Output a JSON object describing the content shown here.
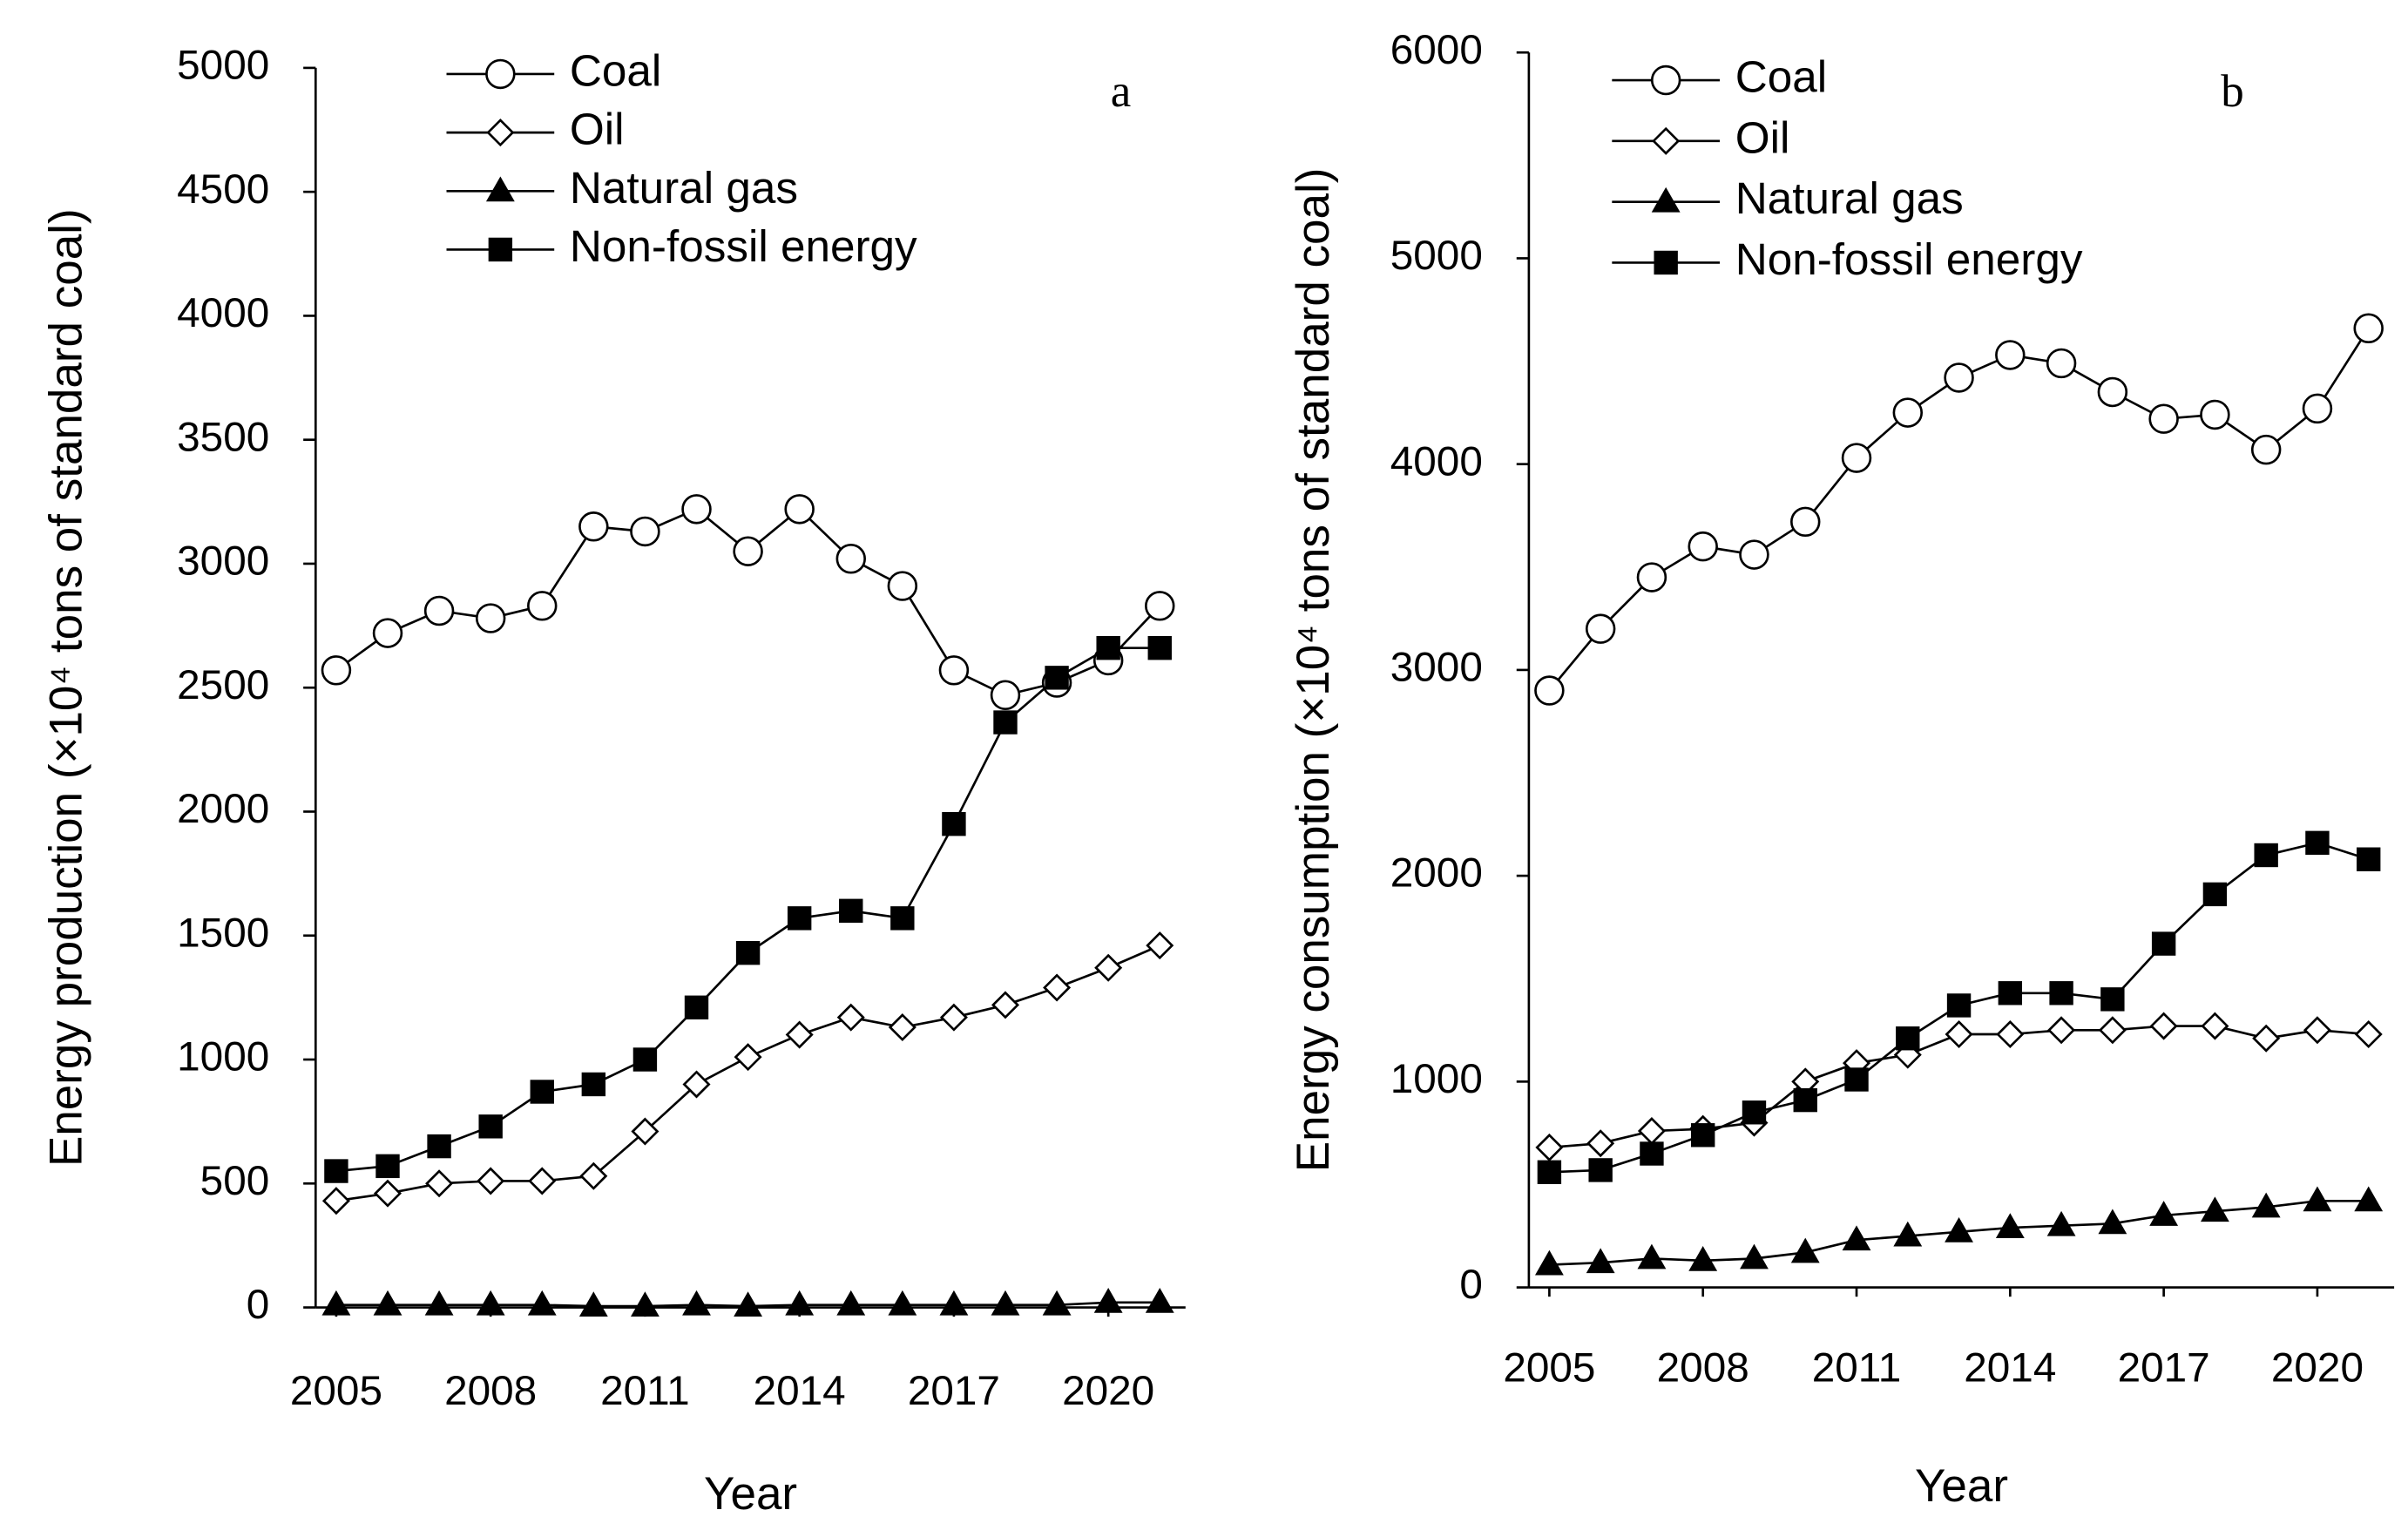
{
  "chart_data": [
    {
      "type": "line",
      "annotation": "a",
      "xlabel": "Year",
      "ylabel": "Energy production (×10⁴ tons of standard coal)",
      "x": [
        2005,
        2006,
        2007,
        2008,
        2009,
        2010,
        2011,
        2012,
        2013,
        2014,
        2015,
        2016,
        2017,
        2018,
        2019,
        2020,
        2021
      ],
      "xlim": [
        2004.6,
        2021.5
      ],
      "xticks": [
        2005,
        2008,
        2011,
        2014,
        2017,
        2020
      ],
      "ylim": [
        0,
        5000
      ],
      "yticks": [
        0,
        500,
        1000,
        1500,
        2000,
        2500,
        3000,
        3500,
        4000,
        4500,
        5000
      ],
      "legend": "upper left",
      "series": [
        {
          "name": "Coal",
          "color": "#000000",
          "marker": "circle",
          "filled": false,
          "values": [
            2570,
            2720,
            2810,
            2780,
            2830,
            3150,
            3130,
            3220,
            3050,
            3220,
            3020,
            2910,
            2570,
            2470,
            2520,
            2610,
            2830
          ]
        },
        {
          "name": "Oil",
          "color": "#000000",
          "marker": "diamond",
          "filled": false,
          "values": [
            430,
            460,
            500,
            510,
            510,
            530,
            710,
            900,
            1010,
            1100,
            1170,
            1130,
            1170,
            1220,
            1290,
            1370,
            1460
          ]
        },
        {
          "name": "Natural gas",
          "color": "#000000",
          "marker": "triangle",
          "filled": true,
          "values": [
            10,
            10,
            10,
            10,
            10,
            5,
            5,
            10,
            5,
            10,
            10,
            10,
            10,
            10,
            10,
            20,
            20
          ]
        },
        {
          "name": "Non-fossil energy",
          "color": "#000000",
          "marker": "square",
          "filled": true,
          "values": [
            550,
            570,
            650,
            730,
            870,
            900,
            1000,
            1210,
            1430,
            1570,
            1600,
            1570,
            1950,
            2360,
            2540,
            2660,
            2660
          ]
        }
      ]
    },
    {
      "type": "line",
      "annotation": "b",
      "xlabel": "Year",
      "ylabel": "Energy consumption (×10⁴ tons of standard coal)",
      "x": [
        2005,
        2006,
        2007,
        2008,
        2009,
        2010,
        2011,
        2012,
        2013,
        2014,
        2015,
        2016,
        2017,
        2018,
        2019,
        2020,
        2021
      ],
      "xlim": [
        2004.6,
        2021.5
      ],
      "xticks": [
        2005,
        2008,
        2011,
        2014,
        2017,
        2020
      ],
      "ylim": [
        0,
        6000
      ],
      "yticks": [
        0,
        1000,
        2000,
        3000,
        4000,
        5000,
        6000
      ],
      "legend": "upper left",
      "series": [
        {
          "name": "Coal",
          "color": "#000000",
          "marker": "circle",
          "filled": false,
          "values": [
            2900,
            3200,
            3450,
            3600,
            3560,
            3720,
            4030,
            4250,
            4420,
            4530,
            4490,
            4350,
            4220,
            4240,
            4070,
            4270,
            4660
          ]
        },
        {
          "name": "Oil",
          "color": "#000000",
          "marker": "diamond",
          "filled": false,
          "values": [
            680,
            700,
            760,
            770,
            800,
            1000,
            1090,
            1130,
            1230,
            1230,
            1250,
            1250,
            1270,
            1270,
            1210,
            1250,
            1230
          ]
        },
        {
          "name": "Natural gas",
          "color": "#000000",
          "marker": "triangle",
          "filled": true,
          "values": [
            110,
            120,
            140,
            130,
            140,
            170,
            230,
            250,
            270,
            290,
            300,
            310,
            350,
            370,
            390,
            420,
            420
          ]
        },
        {
          "name": "Non-fossil energy",
          "color": "#000000",
          "marker": "square",
          "filled": true,
          "values": [
            560,
            570,
            650,
            740,
            850,
            910,
            1010,
            1210,
            1370,
            1430,
            1430,
            1400,
            1670,
            1910,
            2100,
            2160,
            2080
          ]
        }
      ]
    }
  ]
}
